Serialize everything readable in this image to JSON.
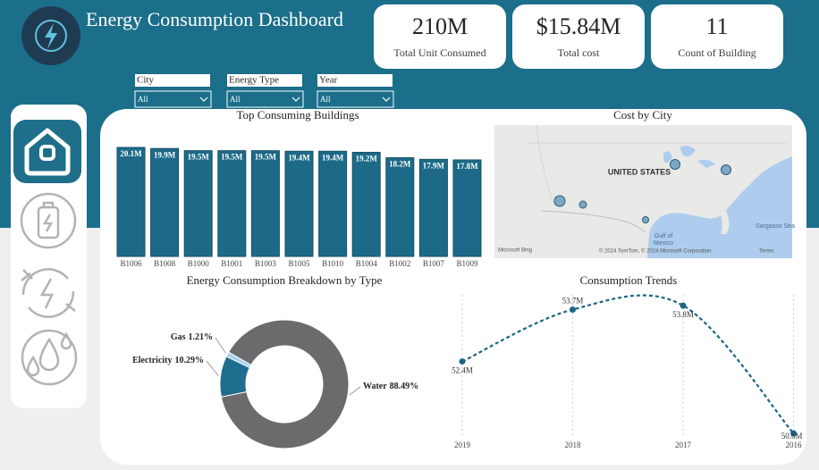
{
  "header": {
    "title": "Energy Consumption Dashboard"
  },
  "kpis": [
    {
      "value": "210M",
      "label": "Total Unit Consumed"
    },
    {
      "value": "$15.84M",
      "label": "Total cost"
    },
    {
      "value": "11",
      "label": "Count of Building"
    }
  ],
  "filters": [
    {
      "label": "City",
      "selected": "All"
    },
    {
      "label": "Energy Type",
      "selected": "All"
    },
    {
      "label": "Year",
      "selected": "All"
    }
  ],
  "map": {
    "title": "Cost by City",
    "labels": [
      "UNITED STATES",
      "Gulf of",
      "Mexico",
      "Sargasso Sea"
    ],
    "attribution": [
      "Microsoft Bing",
      "© 2024 TomTom, © 2024 Microsoft Corporation",
      "Terms"
    ]
  },
  "chart_data": [
    {
      "type": "bar",
      "title": "Top Consuming Buildings",
      "categories": [
        "B1006",
        "B1008",
        "B1000",
        "B1001",
        "B1003",
        "B1005",
        "B1010",
        "B1004",
        "B1002",
        "B1007",
        "B1009"
      ],
      "values": [
        20.1,
        19.9,
        19.5,
        19.5,
        19.5,
        19.4,
        19.4,
        19.2,
        18.2,
        17.9,
        17.8
      ],
      "value_labels": [
        "20.1M",
        "19.9M",
        "19.5M",
        "19.5M",
        "19.5M",
        "19.4M",
        "19.4M",
        "19.2M",
        "18.2M",
        "17.9M",
        "17.8M"
      ],
      "color": "#1c6a88"
    },
    {
      "type": "pie",
      "title": "Energy Consumption Breakdown by Type",
      "categories": [
        "Water",
        "Electricity",
        "Gas"
      ],
      "values": [
        88.49,
        10.29,
        1.21
      ],
      "value_labels": [
        "88.49%",
        "10.29%",
        "1.21%"
      ],
      "colors": [
        "#6b6b6d",
        "#1f6d8e",
        "#a8d3ef"
      ]
    },
    {
      "type": "line",
      "title": "Consumption Trends",
      "categories": [
        "2019",
        "2018",
        "2017",
        "2016"
      ],
      "values": [
        52.4,
        53.7,
        53.8,
        50.6
      ],
      "value_labels": [
        "52.4M",
        "53.7M",
        "53.8M",
        "50.6M"
      ],
      "color": "#1b6685"
    }
  ]
}
